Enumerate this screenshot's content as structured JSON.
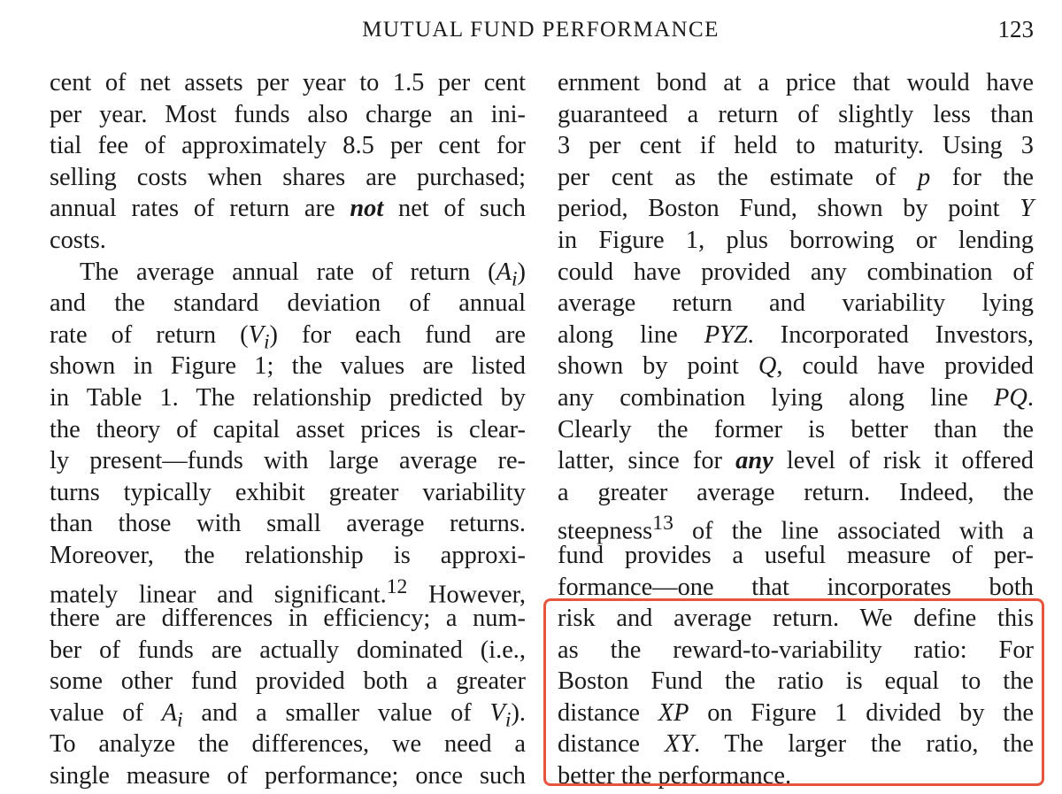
{
  "header": {
    "journal_title": "MUTUAL FUND PERFORMANCE",
    "page_number": "123"
  },
  "left_column": {
    "lines": [
      "cent of net assets per year to 1.5 per cent",
      "per year. Most funds also charge an ini-",
      "tial fee of approximately 8.5 per cent for",
      "selling costs when shares are purchased;",
      "annual rates of return are",
      "costs.",
      "The average annual rate of return (",
      "and the standard deviation of annual",
      "rate of return (",
      "shown in Figure 1; the values are listed",
      "in Table 1. The relationship predicted by",
      "the theory of capital asset prices is clear-",
      "ly present—funds with large average re-",
      "turns typically exhibit greater variability",
      "than those with small average returns.",
      "Moreover, the relationship is approxi-",
      "mately linear and significant.",
      "there are differences in efficiency; a num-",
      "ber of funds are actually dominated (i.e.,",
      "some other fund provided both a greater",
      "value of",
      "To analyze the differences, we need a",
      "single measure of performance; once such"
    ],
    "fragments": {
      "not": "not",
      "net_of_such": " net of such",
      "A_i": "A",
      "A_i_sub": "i",
      "close_paren": ")",
      "V_i": "V",
      "V_i_sub": "i",
      "for_each_fund": ") for each fund are",
      "footnote_12": "12",
      "however": " However,",
      "and_smaller": " and a smaller value of ",
      "close_period": ")."
    }
  },
  "right_column": {
    "lines": [
      "ernment bond at a price that would have",
      "guaranteed a return of slightly less than",
      "3 per cent if held to maturity. Using 3",
      "per cent as the estimate of",
      "period, Boston Fund, shown by point",
      "in Figure 1, plus borrowing or lending",
      "could have provided any combination of",
      "average return and variability lying",
      "along line",
      "shown by point",
      "any combination lying along line",
      "Clearly the former is better than the",
      "latter, since for",
      "a greater average return. Indeed, the",
      "steepness",
      "fund provides a useful measure of per-",
      "formance—one that incorporates both",
      "risk and average return. We define this",
      "as the reward-to-variability ratio: For",
      "Boston Fund the ratio is equal to the",
      "distance",
      "distance",
      "better the performance."
    ],
    "fragments": {
      "p": "p",
      "for_the": " for the",
      "Y": "Y",
      "PYZ": "PYZ",
      "incorporated": ". Incorporated Investors,",
      "Q": "Q",
      "could_have": ", could have provided",
      "PQ": "PQ",
      "period": ".",
      "any": "any",
      "level_of_risk": " level of risk it offered",
      "footnote_13": "13",
      "line_assoc": " of the line associated with a",
      "XP": "XP",
      "on_figure": " on Figure 1 divided by the",
      "XY": "XY",
      "larger_ratio": ". The larger the ratio, the"
    }
  },
  "annotation": {
    "box_color": "#e8553e"
  }
}
